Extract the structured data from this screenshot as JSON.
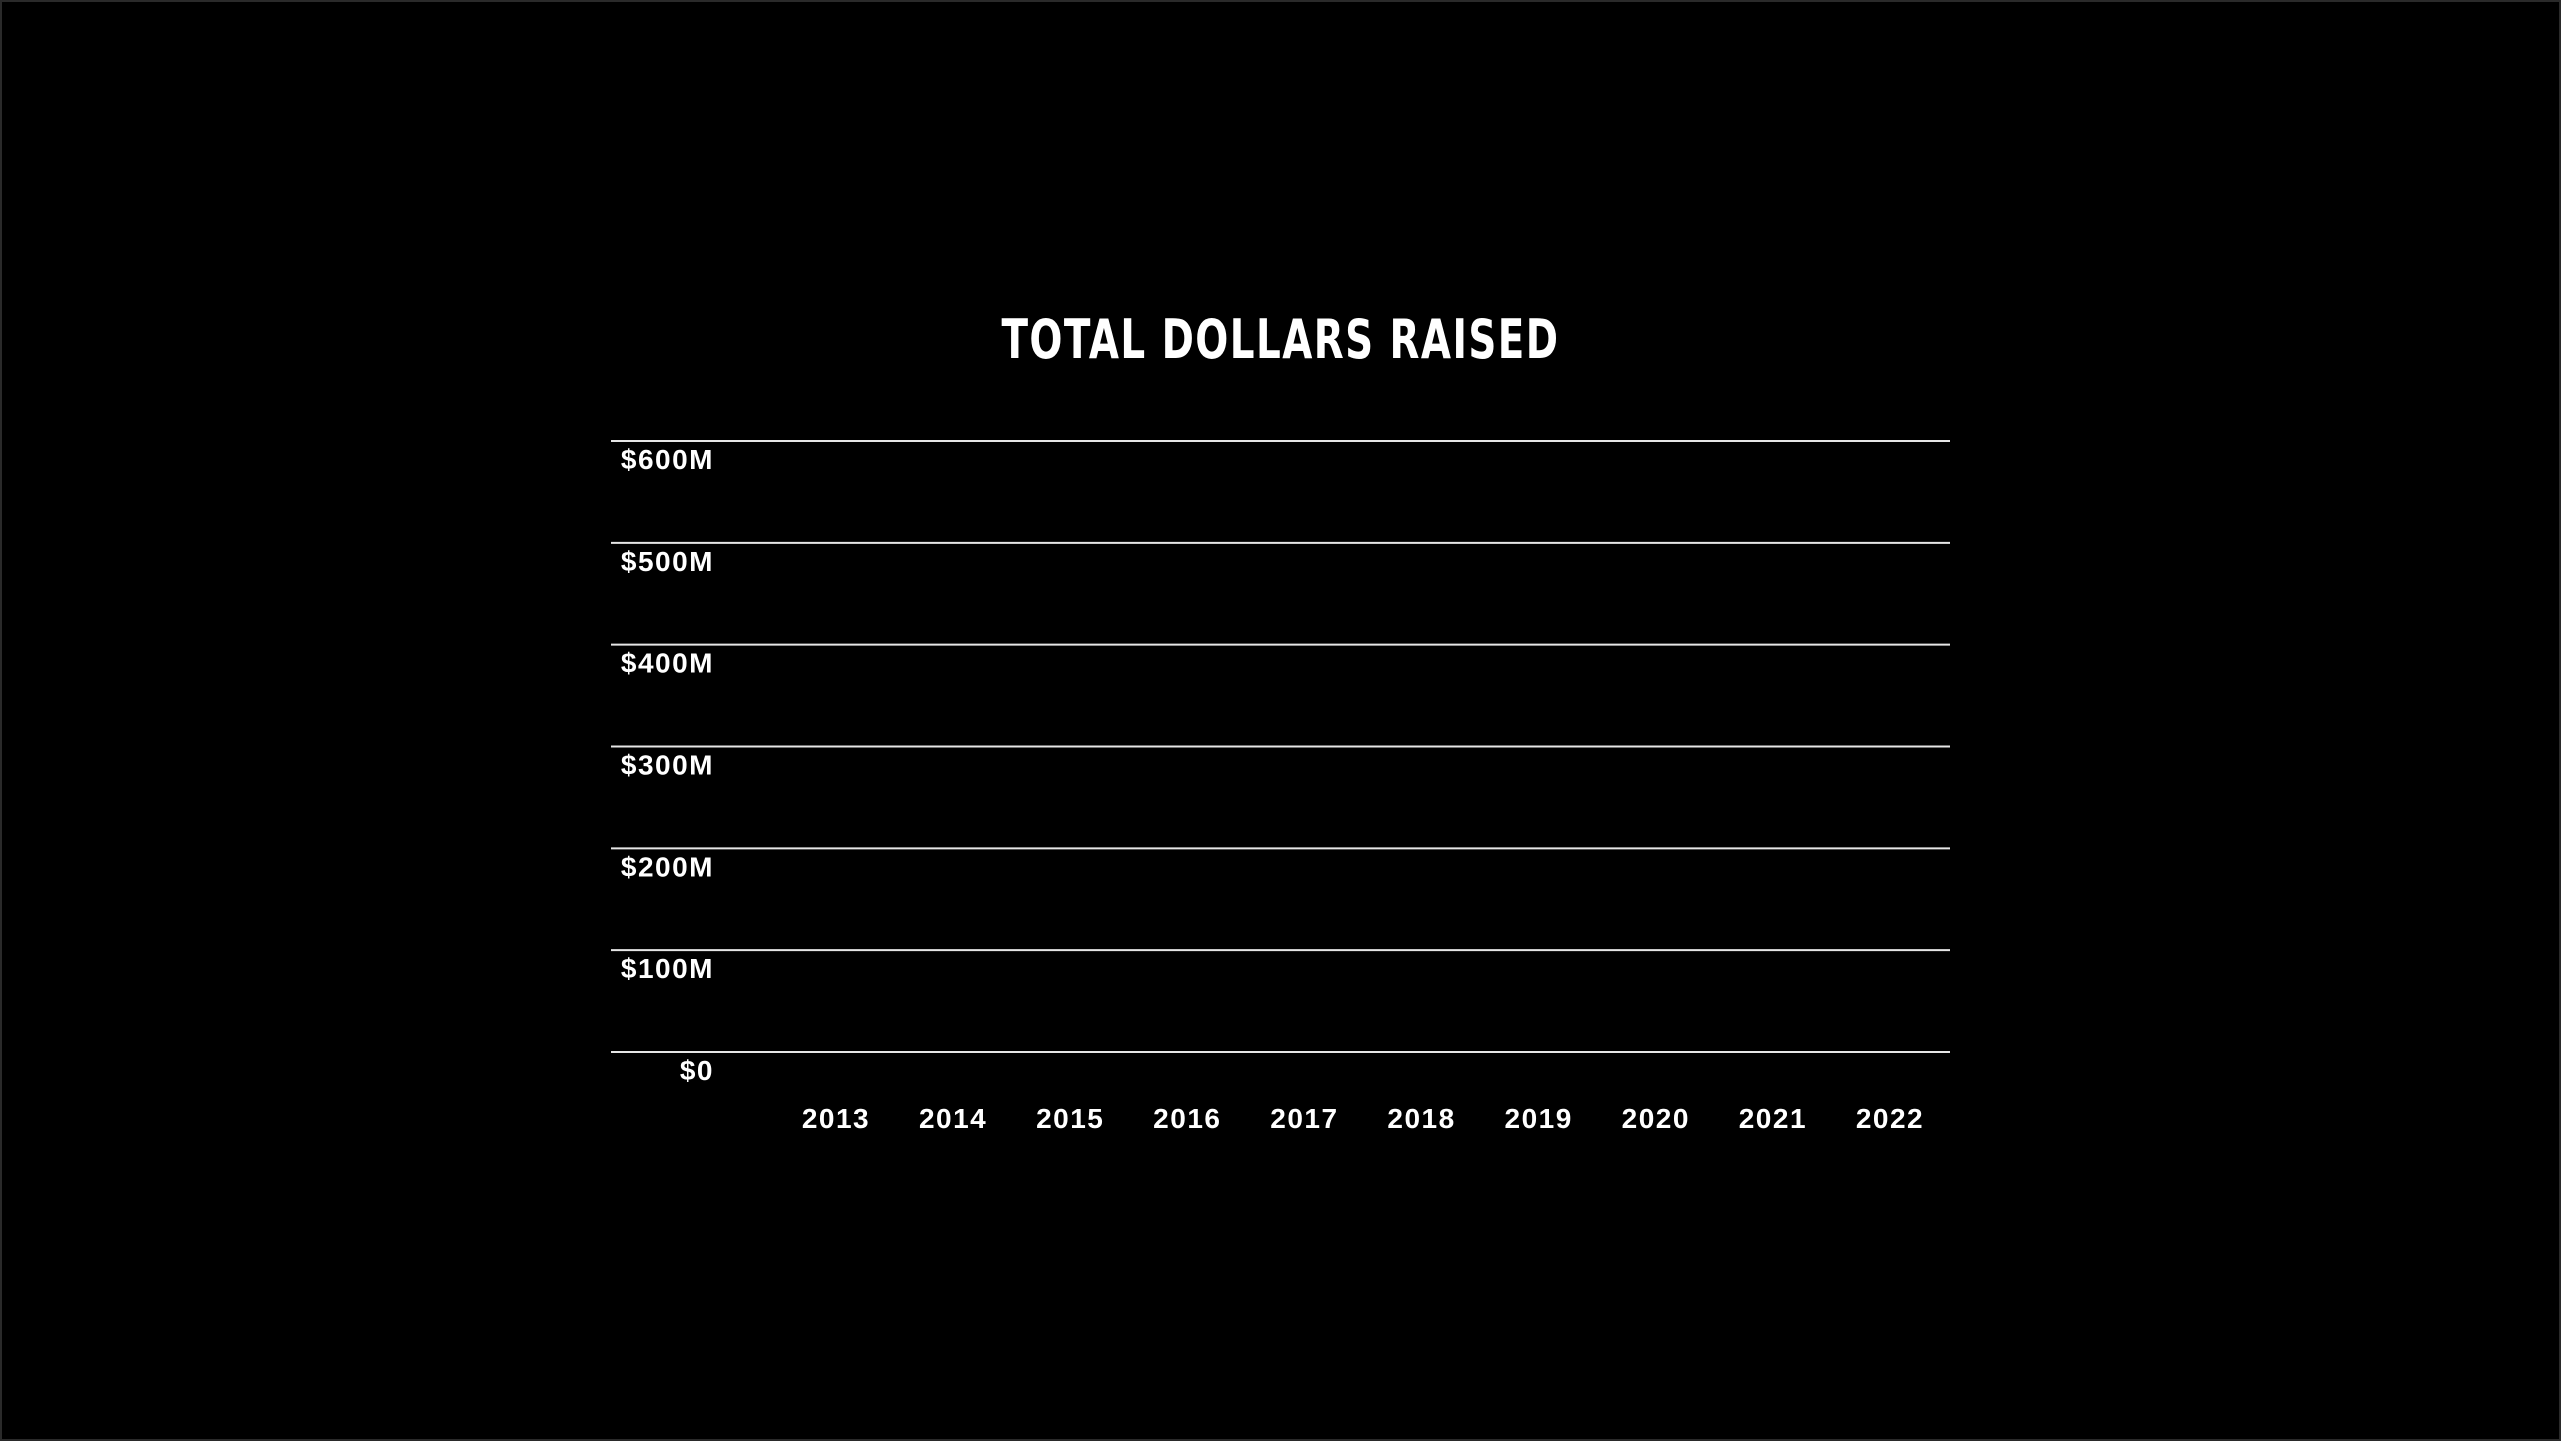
{
  "chart_data": {
    "type": "bar",
    "title": "TOTAL DOLLARS RAISED",
    "xlabel": "",
    "ylabel": "",
    "categories": [
      "2013",
      "2014",
      "2015",
      "2016",
      "2017",
      "2018",
      "2019",
      "2020",
      "2021",
      "2022"
    ],
    "series": [],
    "ylim": [
      0,
      600
    ],
    "y_ticks": [
      {
        "value": 600,
        "label": "$600M"
      },
      {
        "value": 500,
        "label": "$500M"
      },
      {
        "value": 400,
        "label": "$400M"
      },
      {
        "value": 300,
        "label": "$300M"
      },
      {
        "value": 200,
        "label": "$200M"
      },
      {
        "value": 100,
        "label": "$100M"
      },
      {
        "value": 0,
        "label": "$0"
      }
    ],
    "grid": true,
    "legend": "none"
  },
  "colors": {
    "background": "#000000",
    "text": "#ffffff",
    "gridline": "#e6e6e6"
  }
}
